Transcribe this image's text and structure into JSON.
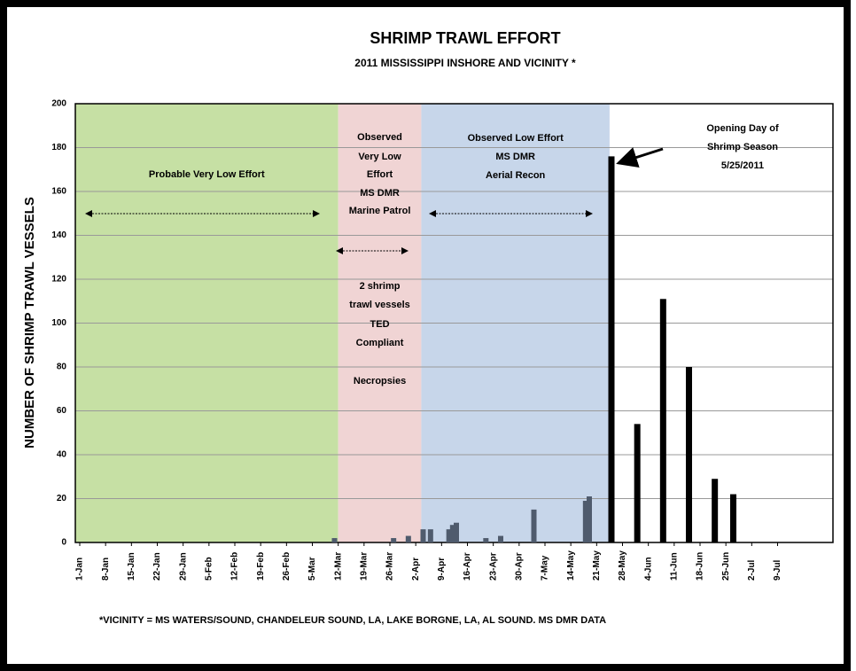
{
  "chart_data": {
    "type": "bar",
    "title": "SHRIMP TRAWL EFFORT",
    "subtitle": "2011 MISSISSIPPI INSHORE AND VICINITY *",
    "y_label": "NUMBER OF  SHRIMP TRAWL VESSELS",
    "footnote": "*VICINITY = MS WATERS/SOUND, CHANDELEUR SOUND, LA, LAKE BORGNE, LA,  AL  SOUND.   MS DMR DATA",
    "xlim": [
      -1.2,
      204
    ],
    "xticks": [
      {
        "value": 0,
        "label": "1-Jan"
      },
      {
        "value": 7,
        "label": "8-Jan"
      },
      {
        "value": 14,
        "label": "15-Jan"
      },
      {
        "value": 21,
        "label": "22-Jan"
      },
      {
        "value": 28,
        "label": "29-Jan"
      },
      {
        "value": 35,
        "label": "5-Feb"
      },
      {
        "value": 42,
        "label": "12-Feb"
      },
      {
        "value": 49,
        "label": "19-Feb"
      },
      {
        "value": 56,
        "label": "26-Feb"
      },
      {
        "value": 63,
        "label": "5-Mar"
      },
      {
        "value": 70,
        "label": "12-Mar"
      },
      {
        "value": 77,
        "label": "19-Mar"
      },
      {
        "value": 84,
        "label": "26-Mar"
      },
      {
        "value": 91,
        "label": "2-Apr"
      },
      {
        "value": 98,
        "label": "9-Apr"
      },
      {
        "value": 105,
        "label": "16-Apr"
      },
      {
        "value": 112,
        "label": "23-Apr"
      },
      {
        "value": 119,
        "label": "30-Apr"
      },
      {
        "value": 126,
        "label": "7-May"
      },
      {
        "value": 133,
        "label": "14-May"
      },
      {
        "value": 140,
        "label": "21-May"
      },
      {
        "value": 147,
        "label": "28-May"
      },
      {
        "value": 154,
        "label": "4-Jun"
      },
      {
        "value": 161,
        "label": "11-Jun"
      },
      {
        "value": 168,
        "label": "18-Jun"
      },
      {
        "value": 175,
        "label": "25-Jun"
      },
      {
        "value": 182,
        "label": "2-Jul"
      },
      {
        "value": 189,
        "label": "9-Jul"
      }
    ],
    "ylim": [
      0,
      200
    ],
    "yticks": [
      0,
      20,
      40,
      60,
      80,
      100,
      120,
      140,
      160,
      180,
      200
    ],
    "grid": true,
    "series": [
      {
        "color": "#4f5b6d",
        "x": [
          69,
          85,
          89,
          93,
          95,
          100,
          101,
          102,
          110,
          114,
          123,
          137,
          138
        ],
        "values": [
          2,
          2,
          3,
          6,
          6,
          6,
          8,
          9,
          2,
          3,
          15,
          19,
          21
        ]
      },
      {
        "color": "#000000",
        "x": [
          144,
          151,
          158,
          165,
          172,
          177
        ],
        "values": [
          176,
          54,
          111,
          80,
          29,
          22
        ]
      }
    ],
    "regions": [
      {
        "x": [
          -1.2,
          70
        ],
        "color": "#c6e0a4",
        "lines": [
          "Probable Very Low Effort"
        ]
      },
      {
        "x": [
          70,
          92.5
        ],
        "color": "#f0d4d4",
        "lines": [
          "Observed",
          "Very Low",
          "Effort",
          "MS DMR",
          "Marine Patrol",
          "2 shrimp",
          "trawl vessels",
          "TED",
          "Compliant",
          "Necropsies"
        ]
      },
      {
        "x": [
          92.5,
          143.5
        ],
        "color": "#c7d6ea",
        "lines": [
          "Observed Low Effort",
          "MS DMR",
          "Aerial Recon"
        ]
      }
    ],
    "annotation": {
      "lines": [
        "Opening Day of",
        "Shrimp Season",
        "5/25/2011"
      ]
    }
  }
}
